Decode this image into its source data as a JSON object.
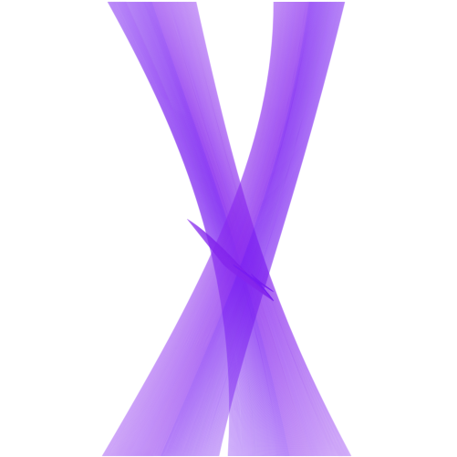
{
  "artwork": {
    "subject": "string-art-x",
    "colors": {
      "background": "#ffffff",
      "stroke": "#8b2df0",
      "stroke_dense": "#7a1ff2"
    },
    "strands": {
      "per_ribbon": 260,
      "opacity": 0.22
    }
  }
}
